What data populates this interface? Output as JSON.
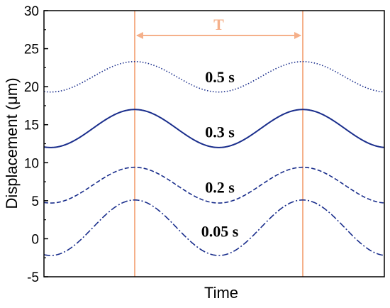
{
  "chart_data": {
    "type": "line",
    "xlabel": "Time",
    "ylabel": "Displacement (μm)",
    "ylim": [
      -5,
      30
    ],
    "y_ticks": [
      -5,
      0,
      5,
      10,
      15,
      20,
      25,
      30
    ],
    "grid": false,
    "line_color": "#1a2e8c",
    "period_marker": {
      "label": "T",
      "color": "#f5b08a"
    },
    "series": [
      {
        "label": "0.5 s",
        "style": "dotted",
        "min": 19.3,
        "max": 23.3,
        "label_value": 21.4
      },
      {
        "label": "0.3 s",
        "style": "solid",
        "min": 12.0,
        "max": 17.0,
        "label_value": 14.2
      },
      {
        "label": "0.2 s",
        "style": "dashed",
        "min": 4.7,
        "max": 9.4,
        "label_value": 6.9
      },
      {
        "label": "0.05 s",
        "style": "dashdot",
        "min": -2.2,
        "max": 5.1,
        "label_value": 1.1
      }
    ]
  }
}
